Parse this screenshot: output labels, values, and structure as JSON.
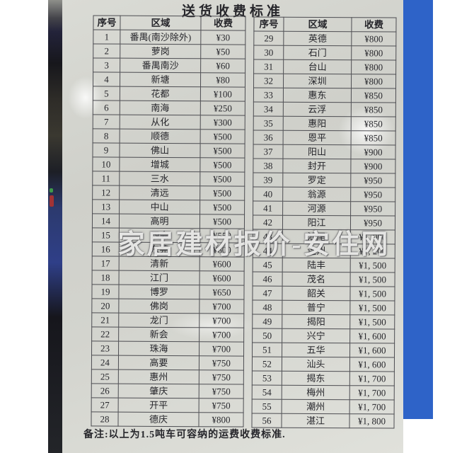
{
  "page": {
    "title": "送货收费标准",
    "note": "备注:以上为1.5吨车可容纳的运费收费标准.",
    "watermark": "家居建材报价-安住网"
  },
  "table": {
    "headers": {
      "no": "序号",
      "region": "区域",
      "fee": "收费"
    },
    "left_rows": [
      {
        "no": "1",
        "region": "番禺(南沙除外)",
        "fee": "¥30"
      },
      {
        "no": "2",
        "region": "萝岗",
        "fee": "¥50"
      },
      {
        "no": "3",
        "region": "番禺南沙",
        "fee": "¥60"
      },
      {
        "no": "4",
        "region": "新塘",
        "fee": "¥80"
      },
      {
        "no": "5",
        "region": "花都",
        "fee": "¥100"
      },
      {
        "no": "6",
        "region": "南海",
        "fee": "¥250"
      },
      {
        "no": "7",
        "region": "从化",
        "fee": "¥300"
      },
      {
        "no": "8",
        "region": "顺德",
        "fee": "¥500"
      },
      {
        "no": "9",
        "region": "佛山",
        "fee": "¥500"
      },
      {
        "no": "10",
        "region": "增城",
        "fee": "¥500"
      },
      {
        "no": "11",
        "region": "三水",
        "fee": "¥500"
      },
      {
        "no": "12",
        "region": "清远",
        "fee": "¥500"
      },
      {
        "no": "13",
        "region": "中山",
        "fee": "¥500"
      },
      {
        "no": "14",
        "region": "高明",
        "fee": "¥500"
      },
      {
        "no": "15",
        "region": "四会",
        "fee": "¥550"
      },
      {
        "no": "16",
        "region": "东莞",
        "fee": "¥600"
      },
      {
        "no": "17",
        "region": "清新",
        "fee": "¥600"
      },
      {
        "no": "18",
        "region": "江门",
        "fee": "¥600"
      },
      {
        "no": "19",
        "region": "博罗",
        "fee": "¥650"
      },
      {
        "no": "20",
        "region": "佛岗",
        "fee": "¥700"
      },
      {
        "no": "21",
        "region": "龙门",
        "fee": "¥700"
      },
      {
        "no": "22",
        "region": "新会",
        "fee": "¥700"
      },
      {
        "no": "23",
        "region": "珠海",
        "fee": "¥700"
      },
      {
        "no": "24",
        "region": "高要",
        "fee": "¥750"
      },
      {
        "no": "25",
        "region": "惠州",
        "fee": "¥750"
      },
      {
        "no": "26",
        "region": "肇庆",
        "fee": "¥750"
      },
      {
        "no": "27",
        "region": "开平",
        "fee": "¥750"
      },
      {
        "no": "28",
        "region": "德庆",
        "fee": "¥800"
      }
    ],
    "right_rows": [
      {
        "no": "29",
        "region": "英德",
        "fee": "¥800"
      },
      {
        "no": "30",
        "region": "石门",
        "fee": "¥800"
      },
      {
        "no": "31",
        "region": "台山",
        "fee": "¥800"
      },
      {
        "no": "32",
        "region": "深圳",
        "fee": "¥800"
      },
      {
        "no": "33",
        "region": "惠东",
        "fee": "¥850"
      },
      {
        "no": "34",
        "region": "云浮",
        "fee": "¥850"
      },
      {
        "no": "35",
        "region": "惠阳",
        "fee": "¥850"
      },
      {
        "no": "36",
        "region": "恩平",
        "fee": "¥850"
      },
      {
        "no": "37",
        "region": "阳山",
        "fee": "¥900"
      },
      {
        "no": "38",
        "region": "封开",
        "fee": "¥900"
      },
      {
        "no": "39",
        "region": "罗定",
        "fee": "¥950"
      },
      {
        "no": "40",
        "region": "翁源",
        "fee": "¥950"
      },
      {
        "no": "41",
        "region": "河源",
        "fee": "¥950"
      },
      {
        "no": "42",
        "region": "阳江",
        "fee": "¥950"
      },
      {
        "no": "43",
        "region": "汕尾",
        "fee": "¥1, 000"
      },
      {
        "no": "44",
        "region": "连州",
        "fee": "¥1, 200"
      },
      {
        "no": "45",
        "region": "陆丰",
        "fee": "¥1, 500"
      },
      {
        "no": "46",
        "region": "茂名",
        "fee": "¥1, 500"
      },
      {
        "no": "47",
        "region": "韶关",
        "fee": "¥1, 500"
      },
      {
        "no": "48",
        "region": "普宁",
        "fee": "¥1, 500"
      },
      {
        "no": "49",
        "region": "揭阳",
        "fee": "¥1, 500"
      },
      {
        "no": "50",
        "region": "兴宁",
        "fee": "¥1, 600"
      },
      {
        "no": "51",
        "region": "五华",
        "fee": "¥1, 600"
      },
      {
        "no": "52",
        "region": "汕头",
        "fee": "¥1, 600"
      },
      {
        "no": "53",
        "region": "揭东",
        "fee": "¥1, 700"
      },
      {
        "no": "54",
        "region": "梅州",
        "fee": "¥1, 700"
      },
      {
        "no": "55",
        "region": "潮州",
        "fee": "¥1, 700"
      },
      {
        "no": "56",
        "region": "湛江",
        "fee": "¥1, 800"
      }
    ]
  }
}
